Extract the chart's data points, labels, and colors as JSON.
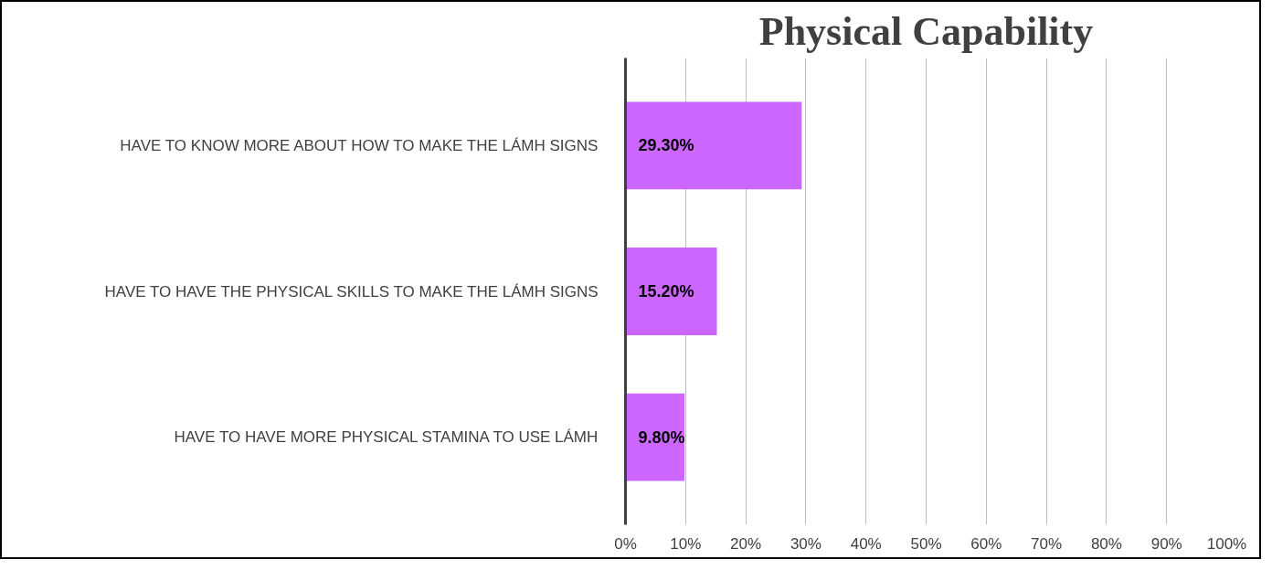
{
  "chart_data": {
    "type": "bar",
    "orientation": "horizontal",
    "title": "Physical Capability",
    "categories": [
      "HAVE TO KNOW MORE ABOUT HOW TO MAKE THE LÁMH SIGNS",
      "HAVE TO HAVE THE PHYSICAL SKILLS TO MAKE THE LÁMH SIGNS",
      "HAVE TO HAVE MORE PHYSICAL STAMINA TO USE LÁMH"
    ],
    "values": [
      29.3,
      15.2,
      9.8
    ],
    "value_labels": [
      "29.30%",
      "15.20%",
      "9.80%"
    ],
    "color": "#cc66ff",
    "xlim": [
      0,
      100
    ],
    "xticks": [
      {
        "value": 0,
        "label": "0%"
      },
      {
        "value": 10,
        "label": "10%"
      },
      {
        "value": 20,
        "label": "20%"
      },
      {
        "value": 30,
        "label": "30%"
      },
      {
        "value": 40,
        "label": "40%"
      },
      {
        "value": 50,
        "label": "50%"
      },
      {
        "value": 60,
        "label": "60%"
      },
      {
        "value": 70,
        "label": "70%"
      },
      {
        "value": 80,
        "label": "80%"
      },
      {
        "value": 90,
        "label": "90%"
      },
      {
        "value": 100,
        "label": "100%"
      }
    ],
    "grid": "x"
  }
}
